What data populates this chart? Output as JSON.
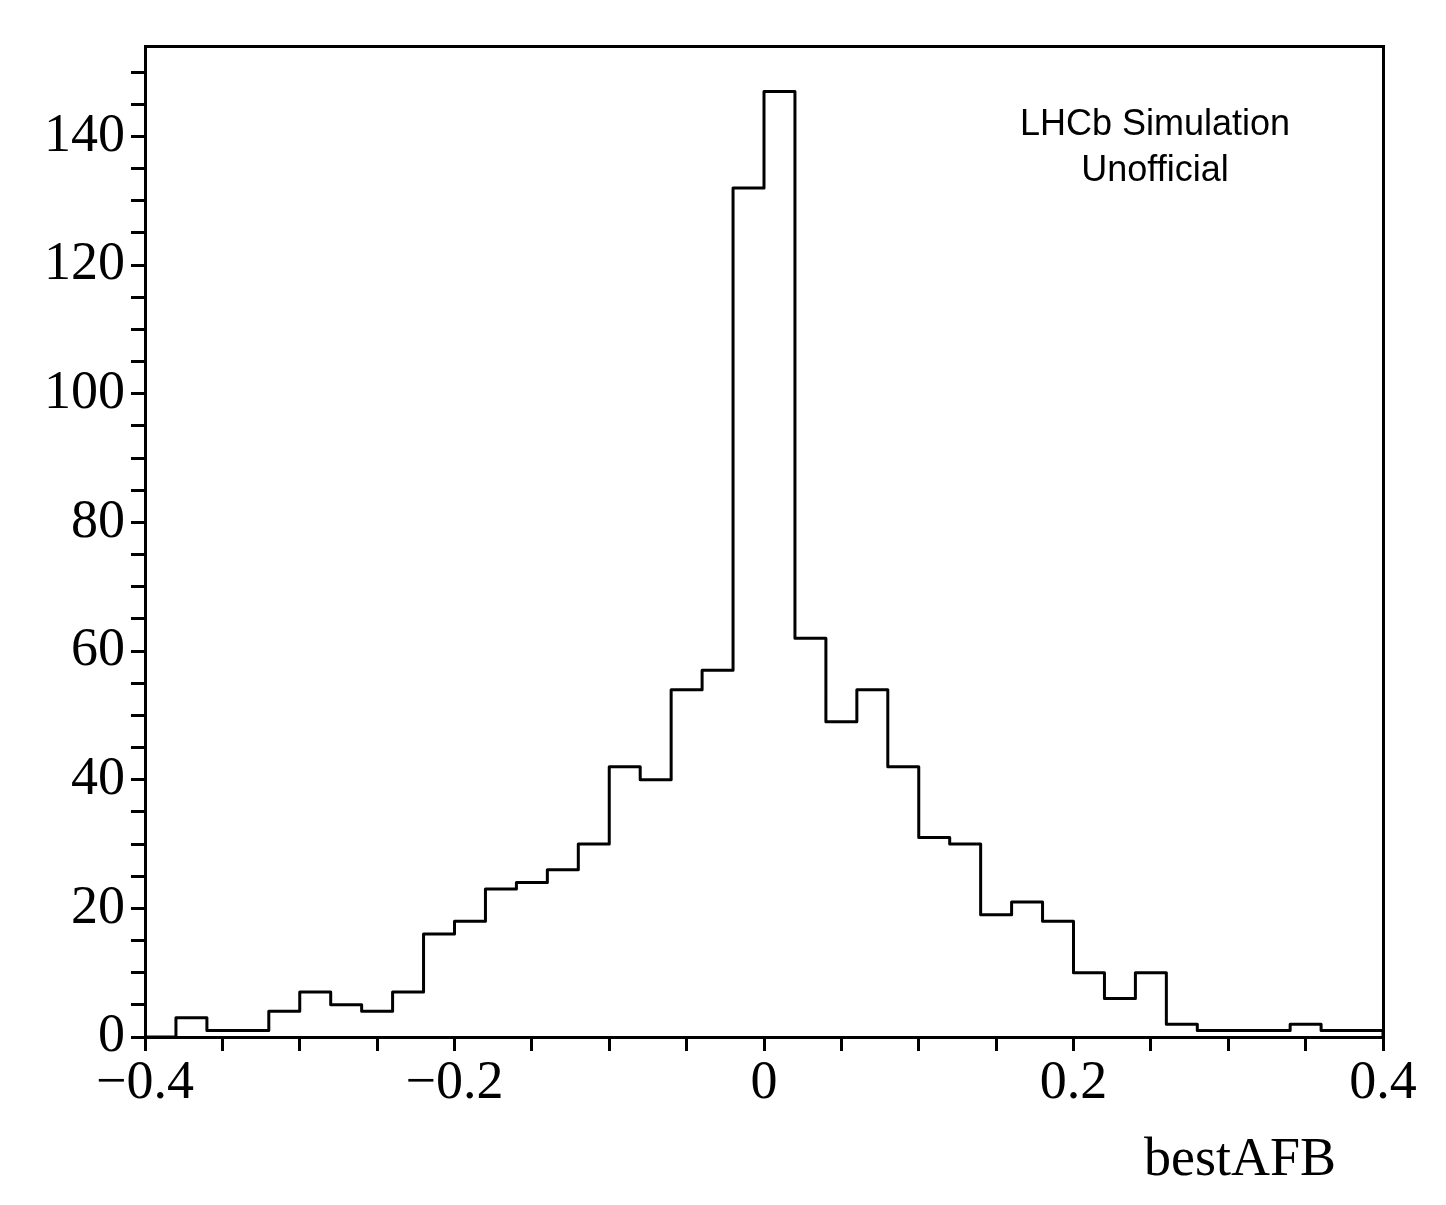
{
  "chart_data": {
    "type": "histogram",
    "xlabel": "bestAFB",
    "annotations": [
      "LHCb Simulation",
      "Unofficial"
    ],
    "color": "#000000",
    "bins": [
      -0.4,
      -0.38,
      -0.36,
      -0.34,
      -0.32,
      -0.3,
      -0.28,
      -0.26,
      -0.24,
      -0.22,
      -0.2,
      -0.18,
      -0.16,
      -0.14,
      -0.12,
      -0.1,
      -0.08,
      -0.06,
      -0.04,
      -0.02,
      0,
      0.02,
      0.04,
      0.06,
      0.08,
      0.1,
      0.12,
      0.14,
      0.16,
      0.18,
      0.2,
      0.22,
      0.24,
      0.26,
      0.28,
      0.3,
      0.32,
      0.34,
      0.36,
      0.38,
      0.4
    ],
    "values": [
      0,
      3,
      1,
      1,
      4,
      7,
      5,
      4,
      7,
      16,
      18,
      23,
      24,
      26,
      30,
      42,
      40,
      54,
      57,
      132,
      147,
      62,
      49,
      54,
      42,
      31,
      30,
      19,
      21,
      18,
      10,
      6,
      10,
      2,
      1,
      1,
      1,
      2,
      1,
      1
    ],
    "xlim": [
      -0.4,
      0.4
    ],
    "ylim": [
      0,
      154
    ],
    "xticks": [
      {
        "value": -0.4,
        "label": "−0.4"
      },
      {
        "value": -0.35,
        "label": null
      },
      {
        "value": -0.3,
        "label": null
      },
      {
        "value": -0.25,
        "label": null
      },
      {
        "value": -0.2,
        "label": "−0.2"
      },
      {
        "value": -0.15,
        "label": null
      },
      {
        "value": -0.1,
        "label": null
      },
      {
        "value": -0.05,
        "label": null
      },
      0,
      {
        "value": 0.05,
        "label": null
      },
      {
        "value": 0.1,
        "label": null
      },
      {
        "value": 0.15,
        "label": null
      },
      0.2,
      {
        "value": 0.25,
        "label": null
      },
      {
        "value": 0.3,
        "label": null
      },
      {
        "value": 0.35,
        "label": null
      },
      0.4
    ],
    "yticks": [
      0,
      {
        "value": 5,
        "label": null
      },
      {
        "value": 10,
        "label": null
      },
      {
        "value": 15,
        "label": null
      },
      20,
      {
        "value": 25,
        "label": null
      },
      {
        "value": 30,
        "label": null
      },
      {
        "value": 35,
        "label": null
      },
      40,
      {
        "value": 45,
        "label": null
      },
      {
        "value": 50,
        "label": null
      },
      {
        "value": 55,
        "label": null
      },
      60,
      {
        "value": 65,
        "label": null
      },
      {
        "value": 70,
        "label": null
      },
      {
        "value": 75,
        "label": null
      },
      80,
      {
        "value": 85,
        "label": null
      },
      {
        "value": 90,
        "label": null
      },
      {
        "value": 95,
        "label": null
      },
      100,
      {
        "value": 105,
        "label": null
      },
      {
        "value": 110,
        "label": null
      },
      {
        "value": 115,
        "label": null
      },
      120,
      {
        "value": 125,
        "label": null
      },
      {
        "value": 130,
        "label": null
      },
      {
        "value": 135,
        "label": null
      },
      140,
      {
        "value": 145,
        "label": null
      },
      {
        "value": 150,
        "label": null
      }
    ]
  }
}
